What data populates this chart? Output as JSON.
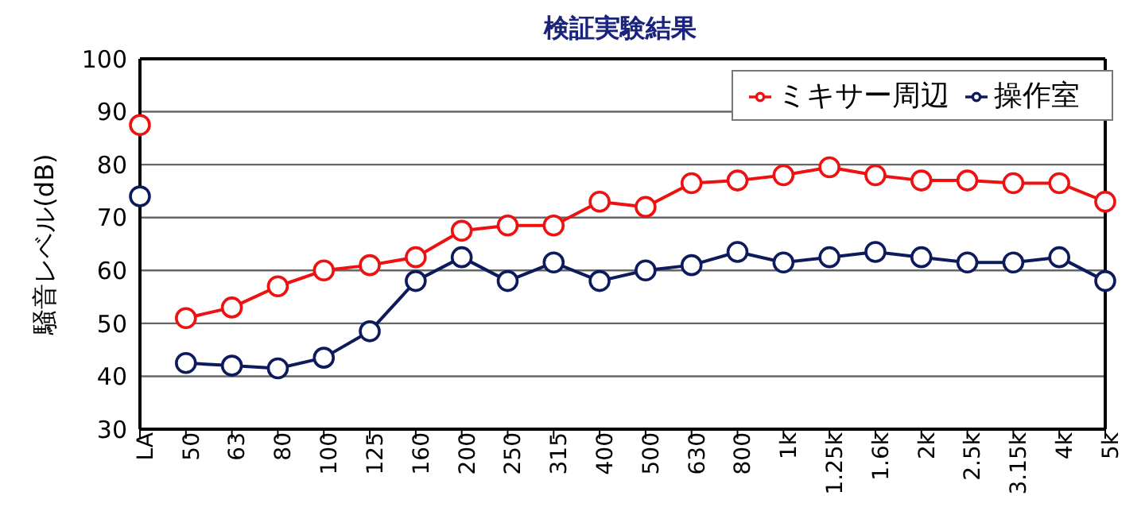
{
  "chart_data": {
    "type": "line",
    "title": "検証実験結果",
    "ylabel": "騒音レベル(dB)",
    "categories": [
      "LA",
      "50",
      "63",
      "80",
      "100",
      "125",
      "160",
      "200",
      "250",
      "315",
      "400",
      "500",
      "630",
      "800",
      "1k",
      "1.25k",
      "1.6k",
      "2k",
      "2.5k",
      "3.15k",
      "4k",
      "5k"
    ],
    "series": [
      {
        "name": "ミキサー周辺",
        "color": "#ee1111",
        "values": [
          null,
          51,
          53,
          57,
          60,
          61,
          62.5,
          67.5,
          68.5,
          68.5,
          73,
          72,
          76.5,
          77,
          78,
          79.5,
          78,
          77,
          77,
          76.5,
          76.5,
          73
        ]
      },
      {
        "name": "操作室",
        "color": "#0d1a5c",
        "values": [
          null,
          42.5,
          42,
          41.5,
          43.5,
          48.5,
          58,
          62.5,
          58,
          61.5,
          58,
          60,
          61,
          63.5,
          61.5,
          62.5,
          63.5,
          62.5,
          61.5,
          61.5,
          62.5,
          58
        ]
      },
      {
        "type": "scatter",
        "color": "#ee1111",
        "x": [
          "LA"
        ],
        "values": [
          87.5
        ]
      },
      {
        "type": "scatter",
        "color": "#0d1a5c",
        "x": [
          "LA"
        ],
        "values": [
          74
        ]
      }
    ],
    "ylim": [
      30,
      100
    ],
    "yticks": [
      30,
      40,
      50,
      60,
      70,
      80,
      90,
      100
    ],
    "grid": "y",
    "legend": "top right",
    "marker": "circle",
    "line_style": "solid"
  }
}
